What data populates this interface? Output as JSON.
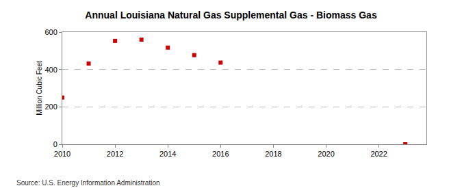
{
  "chart_data": {
    "type": "scatter",
    "title": "Annual Louisiana Natural Gas Supplemental Gas - Biomass Gas",
    "y_label": "Million Cubic Feet",
    "annotations": [
      "Source: U.S. Energy Information Administration"
    ],
    "x": [
      2010,
      2011,
      2012,
      2013,
      2014,
      2015,
      2016,
      2023
    ],
    "values": [
      250,
      432,
      553,
      560,
      517,
      477,
      437,
      0
    ],
    "color": "#cc0000",
    "marker": "square",
    "xlim": [
      2010,
      2023.8
    ],
    "xticks": [
      2010,
      2012,
      2014,
      2016,
      2018,
      2020,
      2022
    ],
    "ylim": [
      0,
      600
    ],
    "yticks": [
      0,
      200,
      400,
      600
    ],
    "grid": true
  }
}
